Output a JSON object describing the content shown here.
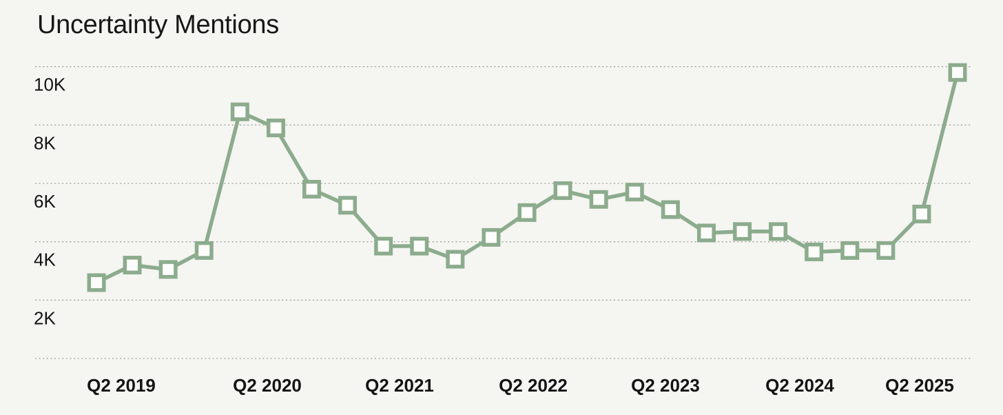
{
  "chart_data": {
    "type": "line",
    "title": "Uncertainty Mentions",
    "x": [
      "Q2 2019",
      "Q3 2019",
      "Q4 2019",
      "Q1 2020",
      "Q2 2020",
      "Q3 2020",
      "Q4 2020",
      "Q1 2021",
      "Q2 2021",
      "Q3 2021",
      "Q4 2021",
      "Q1 2022",
      "Q2 2022",
      "Q3 2022",
      "Q4 2022",
      "Q1 2023",
      "Q2 2023",
      "Q3 2023",
      "Q4 2023",
      "Q1 2024",
      "Q2 2024",
      "Q3 2024",
      "Q4 2024",
      "Q1 2025",
      "Q2 2025"
    ],
    "series": [
      {
        "name": "Uncertainty Mentions",
        "values": [
          2600,
          3200,
          3050,
          3700,
          8450,
          7900,
          5800,
          5250,
          3850,
          3850,
          3400,
          4150,
          5000,
          5750,
          5450,
          5700,
          5100,
          4300,
          4350,
          4350,
          3650,
          3700,
          3700,
          4950,
          9800
        ]
      }
    ],
    "ylim": [
      0,
      10000
    ],
    "y_gridline_values": [
      0,
      2000,
      4000,
      6000,
      8000,
      10000
    ],
    "y_ticks": [
      {
        "label": "2K",
        "value": 2000
      },
      {
        "label": "4K",
        "value": 4000
      },
      {
        "label": "6K",
        "value": 6000
      },
      {
        "label": "8K",
        "value": 8000
      },
      {
        "label": "10K",
        "value": 10000
      }
    ],
    "x_ticks": [
      {
        "label": "Q2 2019",
        "index": 0
      },
      {
        "label": "Q2 2020",
        "index": 4
      },
      {
        "label": "Q2 2021",
        "index": 8
      },
      {
        "label": "Q2 2022",
        "index": 12
      },
      {
        "label": "Q2 2023",
        "index": 16
      },
      {
        "label": "Q2 2024",
        "index": 20
      },
      {
        "label": "Q2 2025",
        "index": 24
      }
    ],
    "grid": "horizontal-dotted",
    "legend": "none",
    "marker": "square",
    "colors": {
      "line": "#8CAC8D",
      "marker_fill": "#fcfcfa",
      "background": "#f5f5f2",
      "gridline": "#9e9e98",
      "text": "#141414"
    }
  }
}
